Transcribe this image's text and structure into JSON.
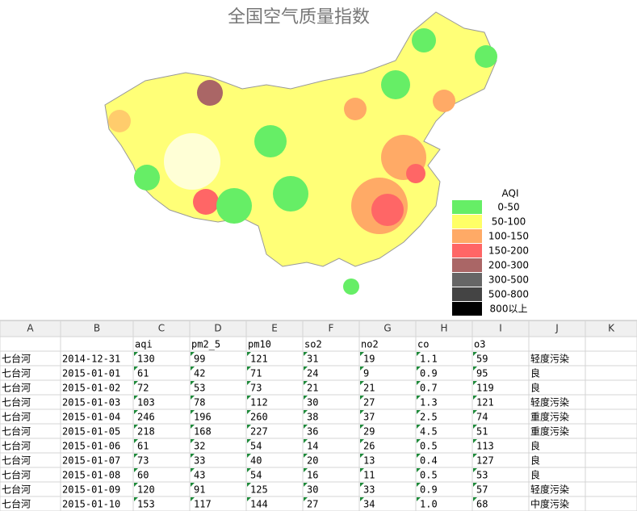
{
  "map": {
    "title": "全国空气质量指数",
    "legend": {
      "title": "AQI",
      "items": [
        {
          "label": "0-50",
          "color": "#66ee66"
        },
        {
          "label": "50-100",
          "color": "#ffff66"
        },
        {
          "label": "100-150",
          "color": "#ffaa66"
        },
        {
          "label": "150-200",
          "color": "#ff6666"
        },
        {
          "label": "200-300",
          "color": "#aa6666"
        },
        {
          "label": "300-500",
          "color": "#666666"
        },
        {
          "label": "500-800",
          "color": "#444444"
        },
        {
          "label": "800以上",
          "color": "#000000"
        }
      ]
    }
  },
  "table": {
    "columns": [
      "A",
      "B",
      "C",
      "D",
      "E",
      "F",
      "G",
      "H",
      "I",
      "J",
      "K"
    ],
    "header": [
      "aqi",
      "pm2_5",
      "pm10",
      "so2",
      "no2",
      "co",
      "o3"
    ],
    "rows": [
      [
        "七台河",
        "2014-12-31",
        "130",
        "99",
        "121",
        "31",
        "19",
        "1.1",
        "59",
        "轻度污染"
      ],
      [
        "七台河",
        "2015-01-01",
        "61",
        "42",
        "71",
        "24",
        "9",
        "0.9",
        "95",
        "良"
      ],
      [
        "七台河",
        "2015-01-02",
        "72",
        "53",
        "73",
        "21",
        "21",
        "0.7",
        "119",
        "良"
      ],
      [
        "七台河",
        "2015-01-03",
        "103",
        "78",
        "112",
        "30",
        "27",
        "1.3",
        "121",
        "轻度污染"
      ],
      [
        "七台河",
        "2015-01-04",
        "246",
        "196",
        "260",
        "38",
        "37",
        "2.5",
        "74",
        "重度污染"
      ],
      [
        "七台河",
        "2015-01-05",
        "218",
        "168",
        "227",
        "36",
        "29",
        "4.5",
        "51",
        "重度污染"
      ],
      [
        "七台河",
        "2015-01-06",
        "61",
        "32",
        "54",
        "14",
        "26",
        "0.5",
        "113",
        "良"
      ],
      [
        "七台河",
        "2015-01-07",
        "73",
        "33",
        "40",
        "20",
        "13",
        "0.4",
        "127",
        "良"
      ],
      [
        "七台河",
        "2015-01-08",
        "60",
        "43",
        "54",
        "16",
        "11",
        "0.5",
        "53",
        "良"
      ],
      [
        "七台河",
        "2015-01-09",
        "120",
        "91",
        "125",
        "30",
        "33",
        "0.9",
        "57",
        "轻度污染"
      ],
      [
        "七台河",
        "2015-01-10",
        "153",
        "117",
        "144",
        "27",
        "34",
        "1.0",
        "68",
        "中度污染"
      ]
    ]
  }
}
